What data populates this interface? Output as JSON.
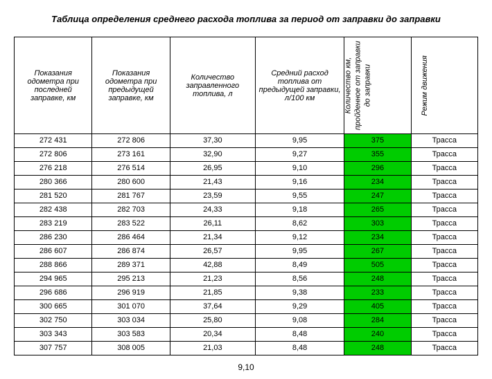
{
  "title": "Таблица определения среднего расхода топлива за период от заправки до заправки",
  "footer": "9,10",
  "headers": {
    "h1": "Показания одометра при последней заправке, км",
    "h2": "Показания одометра при предыдущей заправке, км",
    "h3": "Количество заправленного топлива, л",
    "h4": "Средний расход топлива от предыдущей заправки, л/100 км",
    "h5_l1": "Количество км,",
    "h5_l2": "пройденное от заправки",
    "h5_l3": "до заправки",
    "h6": "Режим движения"
  },
  "rows": [
    {
      "a": "272 431",
      "b": "272 806",
      "c": "37,30",
      "d": "9,95",
      "e": "375",
      "f": "Трасса"
    },
    {
      "a": "272 806",
      "b": "273 161",
      "c": "32,90",
      "d": "9,27",
      "e": "355",
      "f": "Трасса"
    },
    {
      "a": "276 218",
      "b": "276 514",
      "c": "26,95",
      "d": "9,10",
      "e": "296",
      "f": "Трасса"
    },
    {
      "a": "280 366",
      "b": "280 600",
      "c": "21,43",
      "d": "9,16",
      "e": "234",
      "f": "Трасса"
    },
    {
      "a": "281 520",
      "b": "281 767",
      "c": "23,59",
      "d": "9,55",
      "e": "247",
      "f": "Трасса"
    },
    {
      "a": "282 438",
      "b": "282 703",
      "c": "24,33",
      "d": "9,18",
      "e": "265",
      "f": "Трасса"
    },
    {
      "a": "283 219",
      "b": "283 522",
      "c": "26,11",
      "d": "8,62",
      "e": "303",
      "f": "Трасса"
    },
    {
      "a": "286 230",
      "b": "286 464",
      "c": "21,34",
      "d": "9,12",
      "e": "234",
      "f": "Трасса"
    },
    {
      "a": "286 607",
      "b": "286 874",
      "c": "26,57",
      "d": "9,95",
      "e": "267",
      "f": "Трасса"
    },
    {
      "a": "288 866",
      "b": "289 371",
      "c": "42,88",
      "d": "8,49",
      "e": "505",
      "f": "Трасса"
    },
    {
      "a": "294 965",
      "b": "295 213",
      "c": "21,23",
      "d": "8,56",
      "e": "248",
      "f": "Трасса"
    },
    {
      "a": "296 686",
      "b": "296 919",
      "c": "21,85",
      "d": "9,38",
      "e": "233",
      "f": "Трасса"
    },
    {
      "a": "300 665",
      "b": "301 070",
      "c": "37,64",
      "d": "9,29",
      "e": "405",
      "f": "Трасса"
    },
    {
      "a": "302 750",
      "b": "303 034",
      "c": "25,80",
      "d": "9,08",
      "e": "284",
      "f": "Трасса"
    },
    {
      "a": "303 343",
      "b": "303 583",
      "c": "20,34",
      "d": "8,48",
      "e": "240",
      "f": "Трасса"
    },
    {
      "a": "307 757",
      "b": "308 005",
      "c": "21,03",
      "d": "8,48",
      "e": "248",
      "f": "Трасса"
    }
  ],
  "highlight_bg": "#00cc00"
}
